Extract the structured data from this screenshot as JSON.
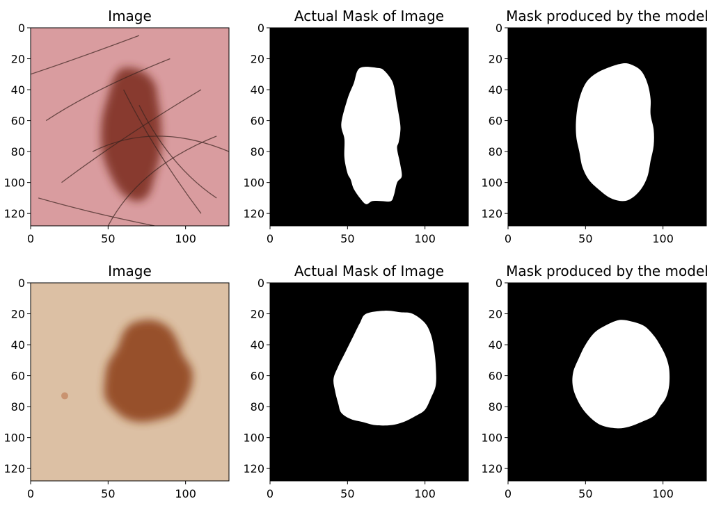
{
  "chart_data": [
    {
      "type": "image",
      "title": "Image",
      "content": "skin-photo",
      "background": "#d99c9f",
      "lesion_color": "#7a2c1e",
      "xlim": [
        0,
        128
      ],
      "ylim": [
        128,
        0
      ],
      "xticks": [
        0,
        50,
        100
      ],
      "yticks": [
        0,
        20,
        40,
        60,
        80,
        100,
        120
      ],
      "lesion": [
        [
          60,
          26
        ],
        [
          72,
          28
        ],
        [
          80,
          36
        ],
        [
          82,
          46
        ],
        [
          84,
          60
        ],
        [
          84,
          80
        ],
        [
          80,
          96
        ],
        [
          76,
          108
        ],
        [
          68,
          112
        ],
        [
          58,
          106
        ],
        [
          50,
          92
        ],
        [
          46,
          78
        ],
        [
          46,
          60
        ],
        [
          50,
          44
        ],
        [
          54,
          32
        ]
      ]
    },
    {
      "type": "mask",
      "title": "Actual Mask of Image",
      "xlim": [
        0,
        128
      ],
      "ylim": [
        128,
        0
      ],
      "xticks": [
        0,
        50,
        100
      ],
      "yticks": [
        0,
        20,
        40,
        60,
        80,
        100,
        120
      ],
      "polygon": [
        [
          58,
          26
        ],
        [
          70,
          26
        ],
        [
          74,
          28
        ],
        [
          78,
          33
        ],
        [
          80,
          38
        ],
        [
          82,
          50
        ],
        [
          84,
          62
        ],
        [
          84,
          68
        ],
        [
          83,
          74
        ],
        [
          82,
          78
        ],
        [
          84,
          88
        ],
        [
          85,
          96
        ],
        [
          82,
          100
        ],
        [
          80,
          108
        ],
        [
          78,
          112
        ],
        [
          72,
          112
        ],
        [
          66,
          112
        ],
        [
          62,
          114
        ],
        [
          58,
          110
        ],
        [
          54,
          104
        ],
        [
          52,
          98
        ],
        [
          50,
          94
        ],
        [
          48,
          84
        ],
        [
          48,
          72
        ],
        [
          46,
          62
        ],
        [
          50,
          46
        ],
        [
          54,
          36
        ]
      ]
    },
    {
      "type": "mask",
      "title": "Mask produced by the model",
      "xlim": [
        0,
        128
      ],
      "ylim": [
        128,
        0
      ],
      "xticks": [
        0,
        50,
        100
      ],
      "yticks": [
        0,
        20,
        40,
        60,
        80,
        100,
        120
      ],
      "polygon": [
        [
          74,
          23
        ],
        [
          80,
          24
        ],
        [
          86,
          28
        ],
        [
          90,
          36
        ],
        [
          92,
          46
        ],
        [
          92,
          56
        ],
        [
          94,
          66
        ],
        [
          94,
          76
        ],
        [
          92,
          86
        ],
        [
          90,
          96
        ],
        [
          86,
          104
        ],
        [
          80,
          110
        ],
        [
          74,
          112
        ],
        [
          66,
          110
        ],
        [
          58,
          104
        ],
        [
          52,
          98
        ],
        [
          48,
          90
        ],
        [
          46,
          80
        ],
        [
          44,
          70
        ],
        [
          44,
          58
        ],
        [
          46,
          46
        ],
        [
          50,
          36
        ],
        [
          56,
          30
        ],
        [
          64,
          26
        ]
      ]
    },
    {
      "type": "image",
      "title": "Image",
      "content": "skin-photo",
      "background": "#dcc0a4",
      "lesion_color": "#8c3c18",
      "xlim": [
        0,
        128
      ],
      "ylim": [
        128,
        0
      ],
      "xticks": [
        0,
        50,
        100
      ],
      "yticks": [
        0,
        20,
        40,
        60,
        80,
        100,
        120
      ],
      "lesion": [
        [
          66,
          26
        ],
        [
          78,
          24
        ],
        [
          88,
          28
        ],
        [
          94,
          36
        ],
        [
          98,
          46
        ],
        [
          104,
          56
        ],
        [
          104,
          66
        ],
        [
          100,
          76
        ],
        [
          94,
          84
        ],
        [
          84,
          88
        ],
        [
          72,
          90
        ],
        [
          62,
          88
        ],
        [
          54,
          82
        ],
        [
          48,
          74
        ],
        [
          48,
          62
        ],
        [
          50,
          52
        ],
        [
          56,
          42
        ],
        [
          60,
          32
        ]
      ]
    },
    {
      "type": "mask",
      "title": "Actual Mask of Image",
      "xlim": [
        0,
        128
      ],
      "ylim": [
        128,
        0
      ],
      "xticks": [
        0,
        50,
        100
      ],
      "yticks": [
        0,
        20,
        40,
        60,
        80,
        100,
        120
      ],
      "polygon": [
        [
          62,
          20
        ],
        [
          74,
          18
        ],
        [
          84,
          19
        ],
        [
          92,
          20
        ],
        [
          100,
          26
        ],
        [
          104,
          34
        ],
        [
          106,
          44
        ],
        [
          107,
          54
        ],
        [
          107,
          66
        ],
        [
          104,
          74
        ],
        [
          100,
          82
        ],
        [
          94,
          86
        ],
        [
          86,
          90
        ],
        [
          78,
          92
        ],
        [
          68,
          92
        ],
        [
          60,
          90
        ],
        [
          52,
          88
        ],
        [
          46,
          84
        ],
        [
          44,
          78
        ],
        [
          42,
          70
        ],
        [
          41,
          62
        ],
        [
          44,
          54
        ],
        [
          48,
          46
        ],
        [
          54,
          34
        ],
        [
          58,
          26
        ]
      ]
    },
    {
      "type": "mask",
      "title": "Mask produced by the model",
      "xlim": [
        0,
        128
      ],
      "ylim": [
        128,
        0
      ],
      "xticks": [
        0,
        50,
        100
      ],
      "yticks": [
        0,
        20,
        40,
        60,
        80,
        100,
        120
      ],
      "polygon": [
        [
          72,
          24
        ],
        [
          80,
          25
        ],
        [
          88,
          28
        ],
        [
          94,
          34
        ],
        [
          98,
          40
        ],
        [
          102,
          48
        ],
        [
          104,
          56
        ],
        [
          104,
          66
        ],
        [
          102,
          74
        ],
        [
          98,
          80
        ],
        [
          94,
          86
        ],
        [
          86,
          90
        ],
        [
          78,
          93
        ],
        [
          70,
          94
        ],
        [
          60,
          92
        ],
        [
          52,
          86
        ],
        [
          46,
          78
        ],
        [
          42,
          68
        ],
        [
          42,
          58
        ],
        [
          46,
          48
        ],
        [
          50,
          40
        ],
        [
          56,
          32
        ],
        [
          64,
          27
        ]
      ]
    }
  ]
}
